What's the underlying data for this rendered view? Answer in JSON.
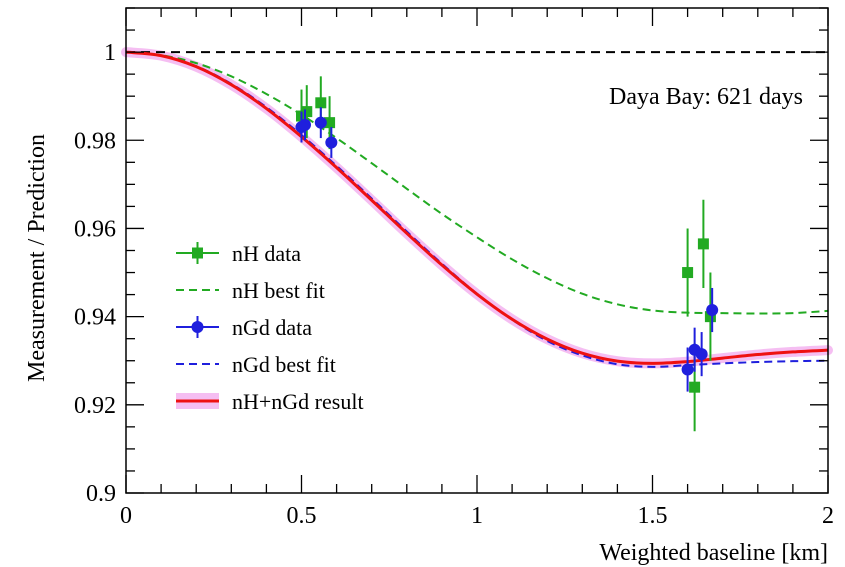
{
  "chart_data": {
    "type": "scatter",
    "title": "",
    "xlabel": "Weighted baseline [km]",
    "ylabel": "Measurement / Prediction",
    "xlim": [
      0,
      2
    ],
    "ylim": [
      0.9,
      1.01
    ],
    "x_ticks": [
      0,
      0.5,
      1,
      1.5,
      2
    ],
    "x_tick_labels": [
      "0",
      "0.5",
      "1",
      "1.5",
      "2"
    ],
    "y_ticks": [
      0.9,
      0.92,
      0.94,
      0.96,
      0.98,
      1
    ],
    "y_tick_labels": [
      "0.9",
      "0.92",
      "0.94",
      "0.96",
      "0.98",
      "1"
    ],
    "annotation": "Daya Bay: 621 days",
    "legend_position": "left",
    "reference_line": {
      "y": 1.0,
      "style": "dashed",
      "color": "#000000"
    },
    "series": [
      {
        "name": "nH data",
        "kind": "points",
        "marker": "square",
        "color": "#22aa22",
        "points": [
          {
            "x": 0.5,
            "y": 0.9855,
            "err": 0.006
          },
          {
            "x": 0.515,
            "y": 0.9865,
            "err": 0.006
          },
          {
            "x": 0.555,
            "y": 0.9885,
            "err": 0.006
          },
          {
            "x": 0.58,
            "y": 0.984,
            "err": 0.006
          },
          {
            "x": 1.6,
            "y": 0.95,
            "err": 0.01
          },
          {
            "x": 1.62,
            "y": 0.924,
            "err": 0.01
          },
          {
            "x": 1.645,
            "y": 0.9565,
            "err": 0.01
          },
          {
            "x": 1.665,
            "y": 0.94,
            "err": 0.01
          }
        ]
      },
      {
        "name": "nH best fit",
        "kind": "line",
        "style": "dashed",
        "color": "#22aa22",
        "x": [
          0,
          0.1,
          0.2,
          0.3,
          0.4,
          0.5,
          0.6,
          0.7,
          0.8,
          0.9,
          1.0,
          1.1,
          1.2,
          1.3,
          1.4,
          1.5,
          1.6,
          1.7,
          1.8,
          1.9,
          2.0
        ],
        "y": [
          1.0,
          0.9993,
          0.9975,
          0.9945,
          0.9905,
          0.9858,
          0.9805,
          0.9748,
          0.969,
          0.9633,
          0.958,
          0.953,
          0.9487,
          0.9452,
          0.9428,
          0.9414,
          0.9409,
          0.9408,
          0.9407,
          0.9408,
          0.9413
        ]
      },
      {
        "name": "nGd data",
        "kind": "points",
        "marker": "circle",
        "color": "#1f1fdd",
        "points": [
          {
            "x": 0.5,
            "y": 0.983,
            "err": 0.0035
          },
          {
            "x": 0.51,
            "y": 0.9835,
            "err": 0.0035
          },
          {
            "x": 0.555,
            "y": 0.984,
            "err": 0.0035
          },
          {
            "x": 0.585,
            "y": 0.9795,
            "err": 0.0035
          },
          {
            "x": 1.6,
            "y": 0.928,
            "err": 0.005
          },
          {
            "x": 1.62,
            "y": 0.9325,
            "err": 0.005
          },
          {
            "x": 1.64,
            "y": 0.9315,
            "err": 0.005
          },
          {
            "x": 1.67,
            "y": 0.9415,
            "err": 0.005
          }
        ]
      },
      {
        "name": "nGd best fit",
        "kind": "line",
        "style": "dashed",
        "color": "#1f1fdd",
        "x": [
          0,
          0.1,
          0.2,
          0.3,
          0.4,
          0.5,
          0.6,
          0.7,
          0.8,
          0.9,
          1.0,
          1.1,
          1.2,
          1.3,
          1.4,
          1.5,
          1.6,
          1.7,
          1.8,
          1.9,
          2.0
        ],
        "y": [
          1.0,
          0.9992,
          0.9968,
          0.9928,
          0.9875,
          0.9812,
          0.9742,
          0.9668,
          0.9593,
          0.952,
          0.9452,
          0.9393,
          0.9345,
          0.9312,
          0.9292,
          0.9286,
          0.929,
          0.9294,
          0.9297,
          0.9299,
          0.93
        ]
      },
      {
        "name": "nH+nGd result",
        "kind": "line",
        "style": "solid",
        "color": "#ee1111",
        "band_color": "#f2a8ee",
        "x": [
          0,
          0.1,
          0.2,
          0.3,
          0.4,
          0.5,
          0.6,
          0.7,
          0.8,
          0.9,
          1.0,
          1.1,
          1.2,
          1.3,
          1.4,
          1.5,
          1.6,
          1.7,
          1.8,
          1.9,
          2.0
        ],
        "y": [
          1.0,
          0.9992,
          0.9967,
          0.9926,
          0.9872,
          0.9808,
          0.9738,
          0.9664,
          0.9589,
          0.9517,
          0.9451,
          0.9394,
          0.9349,
          0.9317,
          0.9299,
          0.9294,
          0.9298,
          0.9306,
          0.9314,
          0.932,
          0.9324
        ]
      }
    ]
  }
}
